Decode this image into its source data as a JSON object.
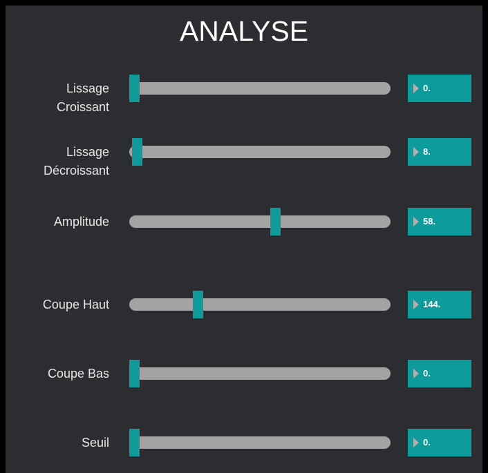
{
  "title": "ANALYSE",
  "controls": [
    {
      "label": [
        "Lissage",
        "Croissant"
      ],
      "value": "0."
    },
    {
      "label": [
        "Lissage",
        "Décroissant"
      ],
      "value": "8."
    },
    {
      "label": [
        "Amplitude"
      ],
      "value": "58."
    },
    {
      "label": [
        "Coupe Haut"
      ],
      "value": "144."
    },
    {
      "label": [
        "Coupe Bas"
      ],
      "value": "0."
    },
    {
      "label": [
        "Seuil"
      ],
      "value": "0."
    }
  ]
}
